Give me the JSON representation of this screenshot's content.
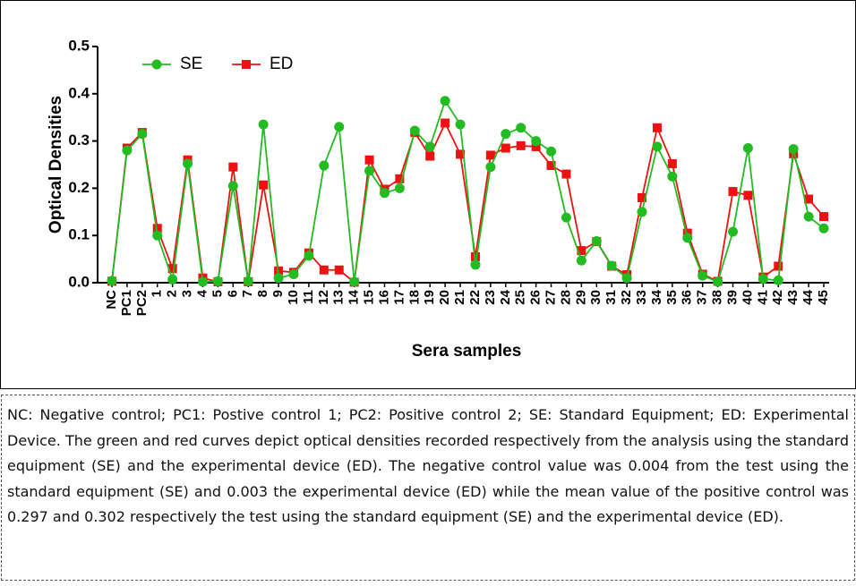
{
  "chart_data": {
    "type": "line",
    "y_label": "Optical Densities",
    "x_label": "Sera samples",
    "categories": [
      "NC",
      "PC1",
      "PC2",
      "1",
      "2",
      "3",
      "4",
      "5",
      "6",
      "7",
      "8",
      "9",
      "10",
      "11",
      "12",
      "13",
      "14",
      "15",
      "16",
      "17",
      "18",
      "19",
      "20",
      "21",
      "22",
      "23",
      "24",
      "25",
      "26",
      "27",
      "28",
      "29",
      "30",
      "31",
      "32",
      "33",
      "34",
      "35",
      "36",
      "37",
      "38",
      "39",
      "40",
      "41",
      "42",
      "43",
      "44",
      "45"
    ],
    "series": [
      {
        "name": "SE",
        "color": "#22bb22",
        "marker": "circle",
        "values": [
          0.004,
          0.28,
          0.315,
          0.1,
          0.007,
          0.252,
          0.002,
          0.003,
          0.205,
          0.003,
          0.335,
          0.01,
          0.018,
          0.057,
          0.248,
          0.33,
          0.002,
          0.237,
          0.19,
          0.2,
          0.322,
          0.288,
          0.385,
          0.335,
          0.038,
          0.245,
          0.315,
          0.328,
          0.3,
          0.278,
          0.138,
          0.047,
          0.088,
          0.036,
          0.01,
          0.15,
          0.288,
          0.225,
          0.095,
          0.015,
          0.002,
          0.108,
          0.285,
          0.008,
          0.005,
          0.283,
          0.14,
          0.115
        ]
      },
      {
        "name": "ED",
        "color": "#ee1111",
        "marker": "square",
        "values": [
          0.003,
          0.285,
          0.318,
          0.115,
          0.03,
          0.26,
          0.01,
          0.002,
          0.245,
          0.002,
          0.207,
          0.025,
          0.022,
          0.063,
          0.027,
          0.027,
          0.001,
          0.26,
          0.198,
          0.22,
          0.318,
          0.268,
          0.338,
          0.272,
          0.055,
          0.27,
          0.285,
          0.29,
          0.288,
          0.248,
          0.23,
          0.068,
          0.087,
          0.035,
          0.017,
          0.18,
          0.328,
          0.252,
          0.105,
          0.018,
          0.003,
          0.193,
          0.185,
          0.012,
          0.035,
          0.273,
          0.177,
          0.14
        ]
      }
    ],
    "ylim": [
      0,
      0.5
    ],
    "yticks": [
      {
        "value": 0,
        "label": "0.0"
      },
      0.1,
      0.2,
      0.3,
      0.4,
      0.5
    ],
    "grid": false,
    "legend": "top-left"
  },
  "caption": "NC: Negative control; PC1: Postive control 1; PC2: Positive control 2; SE: Standard Equipment; ED: Experimental Device. The green and red curves depict optical densities recorded respectively from the analysis using the standard equipment (SE) and the experimental device (ED). The negative control value was 0.004 from the test using the standard equipment (SE) and 0.003 the experimental device (ED) while the mean value of the positive control was 0.297 and 0.302 respectively the test using the standard equipment (SE) and the experimental device (ED)."
}
